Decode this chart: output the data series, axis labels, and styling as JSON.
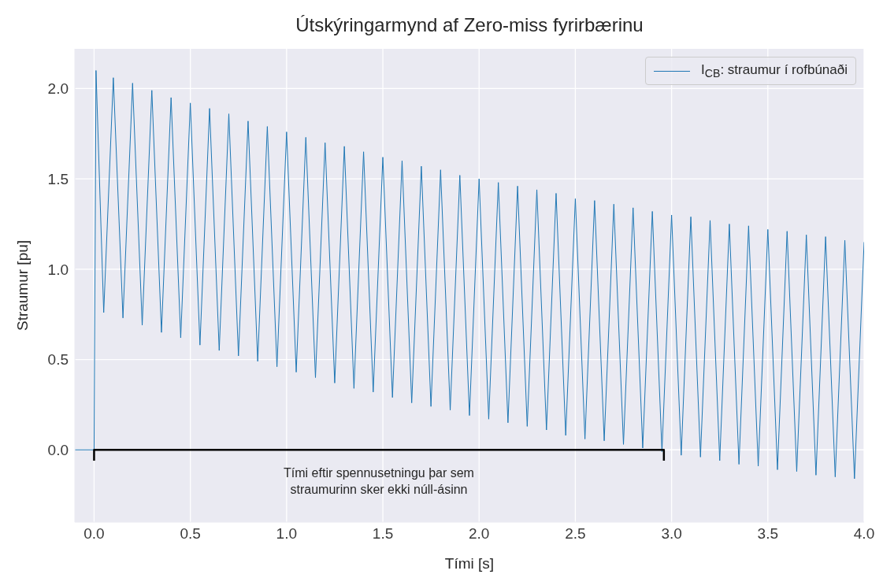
{
  "chart_data": {
    "type": "line",
    "title": "Útskýringarmynd af Zero-miss fyrirbærinu",
    "xlabel": "Tími [s]",
    "ylabel": "Straumur [pu]",
    "series": [
      {
        "name": "I$_{CB}$: straumur í rofbúnaði",
        "color": "#1f77b4",
        "x": [
          -0.1,
          0,
          0.01,
          0.05,
          0.1,
          0.15,
          0.2,
          0.25,
          0.3,
          0.35,
          0.4,
          0.45,
          0.5,
          0.55,
          0.6,
          0.65,
          0.7,
          0.75,
          0.8,
          0.85,
          0.9,
          0.95,
          1.0,
          1.05,
          1.1,
          1.15,
          1.2,
          1.25,
          1.3,
          1.35,
          1.4,
          1.45,
          1.5,
          1.55,
          1.6,
          1.65,
          1.7,
          1.75,
          1.8,
          1.85,
          1.9,
          1.95,
          2.0,
          2.05,
          2.1,
          2.15,
          2.2,
          2.25,
          2.3,
          2.35,
          2.4,
          2.45,
          2.5,
          2.55,
          2.6,
          2.65,
          2.7,
          2.75,
          2.8,
          2.85,
          2.9,
          2.95,
          3.0,
          3.05,
          3.1,
          3.15,
          3.2,
          3.25,
          3.3,
          3.35,
          3.4,
          3.45,
          3.5,
          3.55,
          3.6,
          3.65,
          3.7,
          3.75,
          3.8,
          3.85,
          3.9,
          3.95,
          4.0
        ],
        "values": [
          0,
          0,
          2.1,
          0.76,
          2.06,
          0.73,
          2.03,
          0.69,
          1.99,
          0.65,
          1.95,
          0.62,
          1.92,
          0.58,
          1.89,
          0.55,
          1.86,
          0.52,
          1.82,
          0.49,
          1.79,
          0.46,
          1.76,
          0.43,
          1.73,
          0.4,
          1.7,
          0.37,
          1.68,
          0.34,
          1.65,
          0.32,
          1.62,
          0.29,
          1.6,
          0.26,
          1.57,
          0.24,
          1.55,
          0.22,
          1.52,
          0.19,
          1.5,
          0.17,
          1.48,
          0.15,
          1.46,
          0.13,
          1.44,
          0.11,
          1.42,
          0.08,
          1.39,
          0.06,
          1.38,
          0.05,
          1.36,
          0.03,
          1.34,
          0.01,
          1.32,
          -0.01,
          1.3,
          -0.03,
          1.29,
          -0.04,
          1.27,
          -0.06,
          1.25,
          -0.08,
          1.24,
          -0.09,
          1.22,
          -0.11,
          1.21,
          -0.12,
          1.19,
          -0.14,
          1.18,
          -0.15,
          1.16,
          -0.16,
          1.15
        ]
      },
      {
        "color": "#000000",
        "x": [
          0,
          0,
          2.96,
          2.96
        ],
        "values": [
          -0.06,
          0,
          0,
          -0.06
        ]
      }
    ],
    "annotations": [
      "Tími eftir spennusetningu þar sem\nstraumurinn sker ekki núll-ásinn"
    ],
    "xlim": [
      -0.1,
      4.0
    ],
    "xticks": [
      {
        "value": 0,
        "label": "0.0"
      },
      {
        "value": 0.5,
        "label": "0.5"
      },
      {
        "value": 1,
        "label": "1.0"
      },
      {
        "value": 1.5,
        "label": "1.5"
      },
      {
        "value": 2,
        "label": "2.0"
      },
      {
        "value": 2.5,
        "label": "2.5"
      },
      {
        "value": 3,
        "label": "3.0"
      },
      {
        "value": 3.5,
        "label": "3.5"
      },
      {
        "value": 4,
        "label": "4.0"
      }
    ],
    "ylim": [
      -0.4,
      2.22
    ],
    "yticks": [
      {
        "value": 0,
        "label": "0.0"
      },
      {
        "value": 0.5,
        "label": "0.5"
      },
      {
        "value": 1,
        "label": "1.0"
      },
      {
        "value": 1.5,
        "label": "1.5"
      },
      {
        "value": 2,
        "label": "2.0"
      }
    ],
    "grid": true,
    "legend": "top right",
    "marker": "none",
    "line_style": "solid"
  }
}
